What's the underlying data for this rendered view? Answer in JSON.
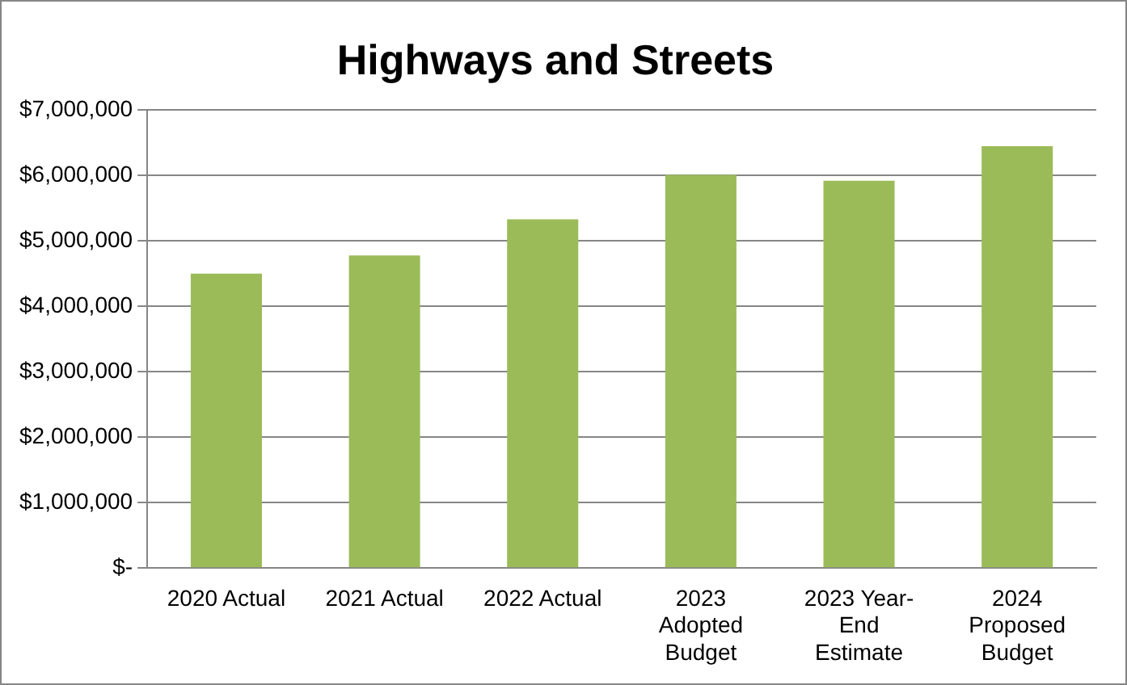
{
  "chart_data": {
    "type": "bar",
    "title": "Highways and Streets",
    "categories": [
      "2020 Actual",
      "2021 Actual",
      "2022 Actual",
      "2023 Adopted Budget",
      "2023 Year-End Estimate",
      "2024 Proposed Budget"
    ],
    "values": [
      4500000,
      4780000,
      5330000,
      6010000,
      5920000,
      6450000
    ],
    "color": "#9bbb59",
    "ylim": [
      0,
      7000000
    ],
    "yticks": [
      {
        "value": 0,
        "label": "$-"
      },
      {
        "value": 1000000,
        "label": "$1,000,000"
      },
      {
        "value": 2000000,
        "label": "$2,000,000"
      },
      {
        "value": 3000000,
        "label": "$3,000,000"
      },
      {
        "value": 4000000,
        "label": "$4,000,000"
      },
      {
        "value": 5000000,
        "label": "$5,000,000"
      },
      {
        "value": 6000000,
        "label": "$6,000,000"
      },
      {
        "value": 7000000,
        "label": "$7,000,000"
      }
    ],
    "grid": "y",
    "legend": false
  }
}
